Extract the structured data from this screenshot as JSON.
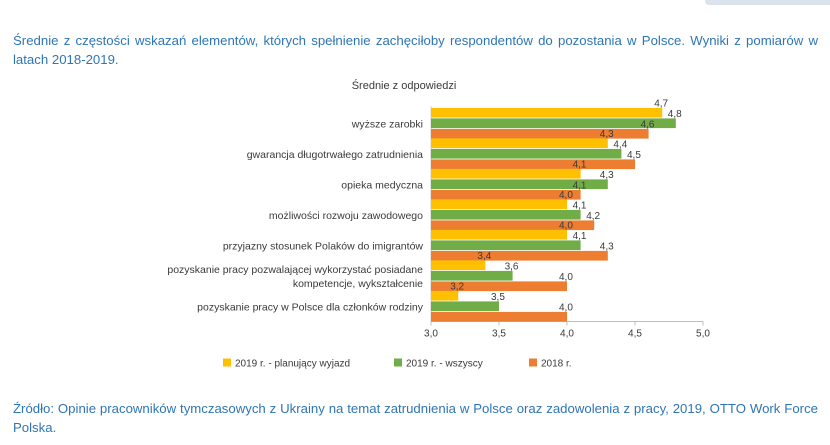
{
  "caption_text": "Średnie z częstości wskazań elementów, których spełnienie zachęciłoby respondentów do pozostania w Polsce. Wyniki z pomiarów w latach 2018-2019.",
  "source_text": "Źródło: Opinie pracowników tymczasowych z Ukrainy na temat zatrudnienia w Polsce oraz zadowolenia z pracy, 2019, OTTO Work Force Polska.",
  "colors": {
    "series_2019_planujacy": "#ffc000",
    "series_2019_wszyscy": "#70ad47",
    "series_2018": "#ed7d31",
    "caption": "#2e75b6"
  },
  "chart_data": {
    "type": "bar",
    "orientation": "horizontal",
    "title": "Średnie z odpowiedzi",
    "xlim": [
      3.0,
      5.0
    ],
    "xticks": [
      "3,0",
      "3,5",
      "4,0",
      "4,5",
      "5,0"
    ],
    "xtick_values": [
      3.0,
      3.5,
      4.0,
      4.5,
      5.0
    ],
    "gridlines": false,
    "legend_position": "bottom",
    "categories": [
      [
        "wyższe zarobki"
      ],
      [
        "gwarancja długotrwałego zatrudnienia"
      ],
      [
        "opieka medyczna"
      ],
      [
        "możliwości rozwoju zawodowego"
      ],
      [
        "przyjazny stosunek Polaków do imigrantów"
      ],
      [
        "pozyskanie pracy pozwalającej wykorzystać posiadane",
        "kompetencje, wykształcenie"
      ],
      [
        "pozyskanie pracy w Polsce dla członków rodziny"
      ]
    ],
    "series": [
      {
        "name": "2019 r. - planujący wyjazd",
        "color": "#ffc000",
        "values": [
          4.7,
          4.3,
          4.1,
          4.0,
          4.0,
          3.4,
          3.2
        ],
        "labels": [
          "4,7",
          "4,3",
          "4,1",
          "4,0",
          "4,0",
          "3,4",
          "3,2"
        ]
      },
      {
        "name": "2019 r. - wszyscy",
        "color": "#70ad47",
        "values": [
          4.8,
          4.4,
          4.3,
          4.1,
          4.1,
          3.6,
          3.5
        ],
        "labels": [
          "4,8",
          "4,4",
          "4,3",
          "4,1",
          "4,1",
          "3,6",
          "3,5"
        ]
      },
      {
        "name": "2018 r.",
        "color": "#ed7d31",
        "values": [
          4.6,
          4.5,
          4.1,
          4.2,
          4.3,
          4.0,
          4.0
        ],
        "labels": [
          "4,6",
          "4,5",
          "4,1",
          "4,2",
          "4,3",
          "4,0",
          "4,0"
        ]
      }
    ]
  }
}
